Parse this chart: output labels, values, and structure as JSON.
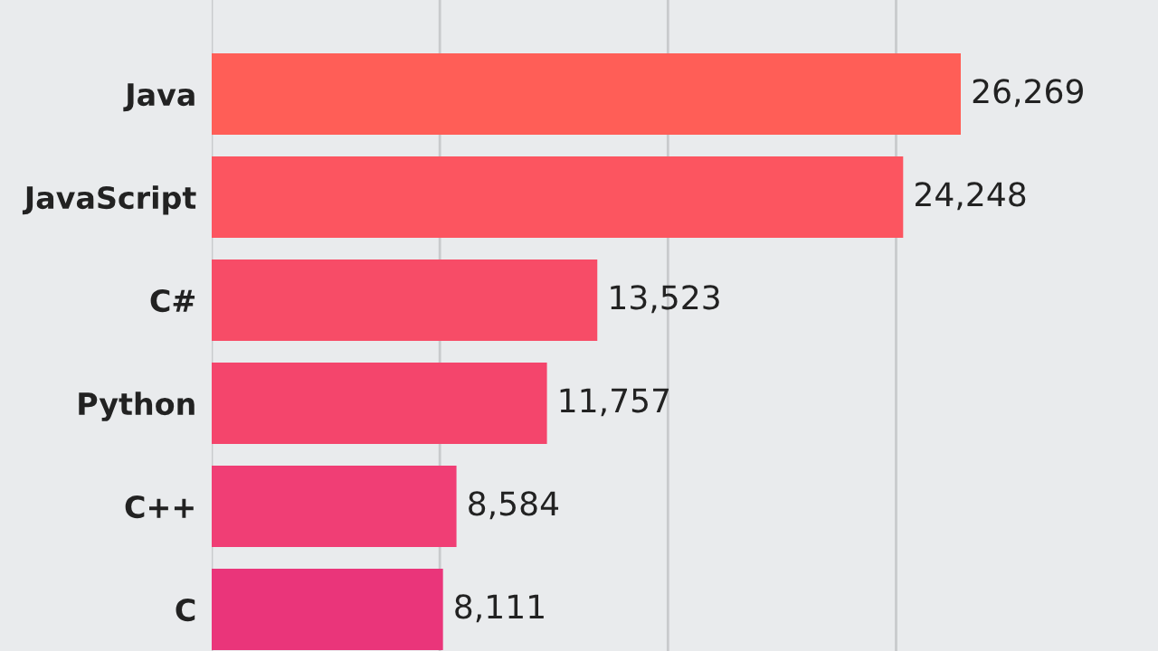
{
  "chart_data": {
    "type": "bar",
    "orientation": "horizontal",
    "categories": [
      "Java",
      "JavaScript",
      "C#",
      "Python",
      "C++",
      "C"
    ],
    "values": [
      26269,
      24248,
      13523,
      11757,
      8584,
      8111
    ],
    "value_labels": [
      "26,269",
      "24,248",
      "13,523",
      "11,757",
      "8,584",
      "8,111"
    ],
    "colors": [
      "#ff5e57",
      "#fc5560",
      "#f74c67",
      "#f4456c",
      "#f03e75",
      "#ea357a"
    ],
    "grid": "x",
    "tick_labels": "y"
  }
}
